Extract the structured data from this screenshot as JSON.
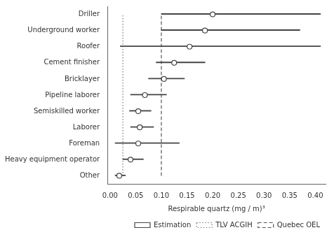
{
  "chart_data": {
    "type": "forest",
    "xlabel": "Respirable quartz (mg / m)³",
    "categories": [
      "Driller",
      "Underground worker",
      "Roofer",
      "Cement finisher",
      "Bricklayer",
      "Pipeline laborer",
      "Semiskilled worker",
      "Laborer",
      "Foreman",
      "Heavy equipment operator",
      "Other"
    ],
    "series": [
      {
        "name": "Estimation",
        "color": "#444444",
        "marker": "circle",
        "values": [
          0.2,
          0.185,
          0.155,
          0.125,
          0.105,
          0.068,
          0.055,
          0.058,
          0.055,
          0.04,
          0.018
        ],
        "ci_low": [
          0.1,
          0.1,
          0.02,
          0.09,
          0.075,
          0.04,
          0.038,
          0.04,
          0.01,
          0.025,
          0.01
        ],
        "ci_high": [
          0.41,
          0.37,
          0.41,
          0.185,
          0.145,
          0.11,
          0.08,
          0.085,
          0.135,
          0.065,
          0.03
        ]
      }
    ],
    "reference_lines": [
      {
        "name": "TLV ACGIH",
        "value": 0.025,
        "color": "#777777",
        "line_style": "dotted"
      },
      {
        "name": "Quebec OEL",
        "value": 0.1,
        "color": "#555555",
        "line_style": "dashed"
      }
    ],
    "xlim": [
      -0.005,
      0.42
    ],
    "xticks": [
      {
        "value": 0.0,
        "label": "0.00"
      },
      0.05,
      {
        "value": 0.1,
        "label": "0.10"
      },
      0.15,
      {
        "value": 0.2,
        "label": "0.20"
      },
      0.25,
      {
        "value": 0.3,
        "label": "0.30"
      },
      0.35,
      {
        "value": 0.4,
        "label": "0.40"
      }
    ],
    "grid": false,
    "legend": "lower right"
  }
}
